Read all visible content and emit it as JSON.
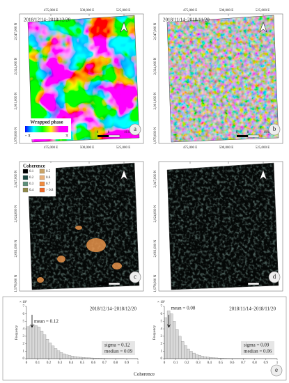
{
  "map_axes": {
    "easting": [
      "475,000 E",
      "500,000 E",
      "525,000 E"
    ],
    "northing": [
      "2,047,000 N",
      "2,024,000 N",
      "2,001,000 N",
      "1,978,000 N"
    ],
    "scale": [
      "0",
      "8",
      "16 km"
    ]
  },
  "panels": [
    {
      "letter": "a",
      "date": "2018/12/14–2018/12/20",
      "legend": {
        "title": "Wrapped phase",
        "min": "- π",
        "max": "π"
      }
    },
    {
      "letter": "b",
      "date": "2018/11/14–2018/11/20"
    },
    {
      "letter": "c",
      "legend": {
        "title": "Coherence",
        "labels": [
          "0.1",
          "0.2",
          "0.3",
          "0.4",
          "0.5",
          "0.6",
          "0.7",
          "> 0.8"
        ],
        "colors": [
          "#000000",
          "#1f4a44",
          "#5d8f7a",
          "#8f8a4a",
          "#c9a469",
          "#e8b07a",
          "#f08b3f",
          "#f06a2a"
        ]
      }
    },
    {
      "letter": "d"
    }
  ],
  "chart_data": [
    {
      "type": "histogram",
      "title": "2018/12/14–2018/12/20",
      "y_label": "Frequency",
      "y_multiplier": "× 10⁵",
      "mean_label": "mean = 0.12",
      "stats": [
        "sigma = 0.12",
        "median = 0.09"
      ],
      "color": "#d9d9d9",
      "bins": [
        0,
        0.025,
        0.05,
        0.075,
        0.1,
        0.125,
        0.15,
        0.175,
        0.2,
        0.225,
        0.25,
        0.275,
        0.3,
        0.325,
        0.35,
        0.375,
        0.4,
        0.425,
        0.45,
        0.475,
        0.5,
        0.525,
        0.55,
        0.575,
        0.6,
        0.625,
        0.65,
        0.675,
        0.7,
        0.725,
        0.75,
        0.775,
        0.8,
        0.825,
        0.85,
        0.875,
        0.9,
        0.925,
        0.95,
        0.975,
        1
      ],
      "values": [
        4.3,
        4.4,
        4.5,
        4.4,
        4.2,
        3.7,
        3.2,
        2.6,
        2.1,
        1.7,
        1.35,
        1.05,
        0.82,
        0.65,
        0.52,
        0.42,
        0.34,
        0.28,
        0.23,
        0.19,
        0.16,
        0.13,
        0.11,
        0.09,
        0.08,
        0.07,
        0.06,
        0.05,
        0.04,
        0.035,
        0.03,
        0.025,
        0.02,
        0.018,
        0.015,
        0.012,
        0.01,
        0.008,
        0.006,
        0.005
      ],
      "xlim": [
        0,
        1
      ],
      "xticks": [
        0,
        0.1,
        0.2,
        0.3,
        0.4,
        0.5,
        0.6,
        0.7,
        0.8,
        0.9,
        1
      ],
      "ylim": [
        0,
        7
      ],
      "yticks": [
        0,
        1,
        2,
        3,
        4,
        5,
        6,
        7
      ]
    },
    {
      "type": "histogram",
      "title": "2018/11/14–2018/11/20",
      "y_label": "Frequency",
      "y_multiplier": "× 10⁵",
      "mean_label": "mean = 0.08",
      "stats": [
        "sigma = 0.09",
        "median = 0.06"
      ],
      "color": "#d9d9d9",
      "bins": [
        0,
        0.025,
        0.05,
        0.075,
        0.1,
        0.125,
        0.15,
        0.175,
        0.2,
        0.225,
        0.25,
        0.275,
        0.3,
        0.325,
        0.35,
        0.375,
        0.4,
        0.425,
        0.45,
        0.475,
        0.5,
        0.525,
        0.55,
        0.575,
        0.6,
        0.625,
        0.65,
        0.675,
        0.7,
        0.725,
        0.75,
        0.775,
        0.8,
        0.825,
        0.85,
        0.875,
        0.9,
        0.925,
        0.95,
        0.975,
        1
      ],
      "values": [
        5.5,
        6.4,
        6.0,
        5.0,
        3.9,
        3.0,
        2.3,
        1.75,
        1.3,
        0.98,
        0.74,
        0.56,
        0.43,
        0.33,
        0.26,
        0.2,
        0.16,
        0.13,
        0.1,
        0.08,
        0.065,
        0.05,
        0.04,
        0.035,
        0.03,
        0.025,
        0.02,
        0.017,
        0.014,
        0.012,
        0.01,
        0.008,
        0.007,
        0.006,
        0.005,
        0.004,
        0.003,
        0.003,
        0.002,
        0.002
      ],
      "xlim": [
        0,
        1
      ],
      "xticks": [
        0,
        0.1,
        0.2,
        0.3,
        0.4,
        0.5,
        0.6,
        0.7,
        0.8,
        0.9,
        1
      ],
      "ylim": [
        0,
        7
      ],
      "yticks": [
        0,
        1,
        2,
        3,
        4,
        5,
        6,
        7
      ]
    }
  ],
  "x_label": "Coherence",
  "panel_letter": "e"
}
